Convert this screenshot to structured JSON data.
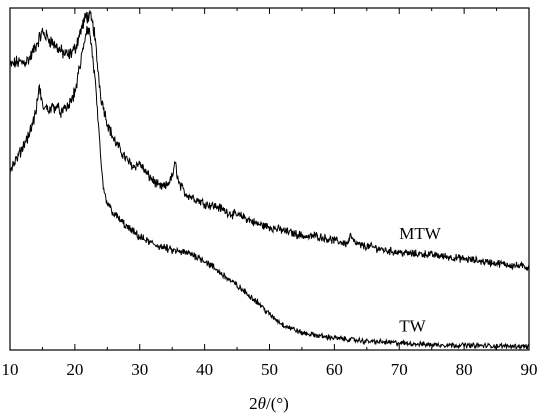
{
  "chart_data": {
    "type": "line",
    "xlabel_prefix": "2",
    "xlabel_symbol": "θ",
    "xlabel_suffix": "/(°)",
    "xlim": [
      10,
      90
    ],
    "ylim": [
      0,
      1
    ],
    "y_ticks_labeled": false,
    "grid": false,
    "x_ticks": [
      "10",
      "20",
      "30",
      "40",
      "50",
      "60",
      "70",
      "80",
      "90"
    ],
    "x_tick_values": [
      10,
      20,
      30,
      40,
      50,
      60,
      70,
      80,
      90
    ],
    "line_color": "#000000",
    "series": [
      {
        "name": "MTW",
        "label_at": [
          70,
          0.3
        ],
        "points": [
          [
            10,
            0.84
          ],
          [
            11,
            0.85
          ],
          [
            12,
            0.85
          ],
          [
            13,
            0.86
          ],
          [
            14,
            0.9
          ],
          [
            15,
            0.94
          ],
          [
            16,
            0.92
          ],
          [
            17,
            0.9
          ],
          [
            18,
            0.88
          ],
          [
            19,
            0.87
          ],
          [
            20,
            0.89
          ],
          [
            21,
            0.95
          ],
          [
            21.8,
            0.99
          ],
          [
            22.5,
            0.98
          ],
          [
            23,
            0.94
          ],
          [
            23.5,
            0.84
          ],
          [
            24,
            0.75
          ],
          [
            25,
            0.67
          ],
          [
            26,
            0.62
          ],
          [
            27,
            0.59
          ],
          [
            28,
            0.56
          ],
          [
            29,
            0.54
          ],
          [
            30,
            0.55
          ],
          [
            31,
            0.52
          ],
          [
            32,
            0.5
          ],
          [
            33,
            0.48
          ],
          [
            34,
            0.48
          ],
          [
            35,
            0.51
          ],
          [
            35.5,
            0.55
          ],
          [
            36,
            0.49
          ],
          [
            37,
            0.46
          ],
          [
            38,
            0.45
          ],
          [
            40,
            0.43
          ],
          [
            42,
            0.42
          ],
          [
            44,
            0.4
          ],
          [
            46,
            0.39
          ],
          [
            48,
            0.37
          ],
          [
            50,
            0.36
          ],
          [
            52,
            0.35
          ],
          [
            54,
            0.34
          ],
          [
            56,
            0.33
          ],
          [
            57,
            0.335
          ],
          [
            58,
            0.33
          ],
          [
            60,
            0.32
          ],
          [
            62,
            0.31
          ],
          [
            62.5,
            0.335
          ],
          [
            63,
            0.315
          ],
          [
            64,
            0.305
          ],
          [
            66,
            0.3
          ],
          [
            68,
            0.29
          ],
          [
            70,
            0.285
          ],
          [
            72,
            0.28
          ],
          [
            74,
            0.28
          ],
          [
            76,
            0.275
          ],
          [
            78,
            0.27
          ],
          [
            80,
            0.265
          ],
          [
            82,
            0.26
          ],
          [
            84,
            0.255
          ],
          [
            86,
            0.25
          ],
          [
            88,
            0.245
          ],
          [
            90,
            0.24
          ]
        ]
      },
      {
        "name": "TW",
        "label_at": [
          70,
          0.025
        ],
        "points": [
          [
            10,
            0.53
          ],
          [
            11,
            0.56
          ],
          [
            12,
            0.6
          ],
          [
            13,
            0.64
          ],
          [
            14,
            0.7
          ],
          [
            14.5,
            0.78
          ],
          [
            15,
            0.72
          ],
          [
            16,
            0.71
          ],
          [
            17,
            0.72
          ],
          [
            18,
            0.7
          ],
          [
            19,
            0.72
          ],
          [
            20,
            0.76
          ],
          [
            21,
            0.86
          ],
          [
            21.8,
            0.95
          ],
          [
            22.3,
            0.94
          ],
          [
            23,
            0.82
          ],
          [
            23.5,
            0.7
          ],
          [
            24,
            0.55
          ],
          [
            24.5,
            0.46
          ],
          [
            25,
            0.43
          ],
          [
            26,
            0.4
          ],
          [
            27,
            0.38
          ],
          [
            28,
            0.36
          ],
          [
            30,
            0.33
          ],
          [
            32,
            0.31
          ],
          [
            35,
            0.29
          ],
          [
            38,
            0.28
          ],
          [
            40,
            0.26
          ],
          [
            42,
            0.23
          ],
          [
            44,
            0.2
          ],
          [
            46,
            0.17
          ],
          [
            48,
            0.14
          ],
          [
            50,
            0.1
          ],
          [
            52,
            0.07
          ],
          [
            55,
            0.045
          ],
          [
            58,
            0.035
          ],
          [
            60,
            0.03
          ],
          [
            65,
            0.02
          ],
          [
            70,
            0.015
          ],
          [
            75,
            0.01
          ],
          [
            80,
            0.008
          ],
          [
            85,
            0.006
          ],
          [
            90,
            0.005
          ]
        ]
      }
    ]
  }
}
